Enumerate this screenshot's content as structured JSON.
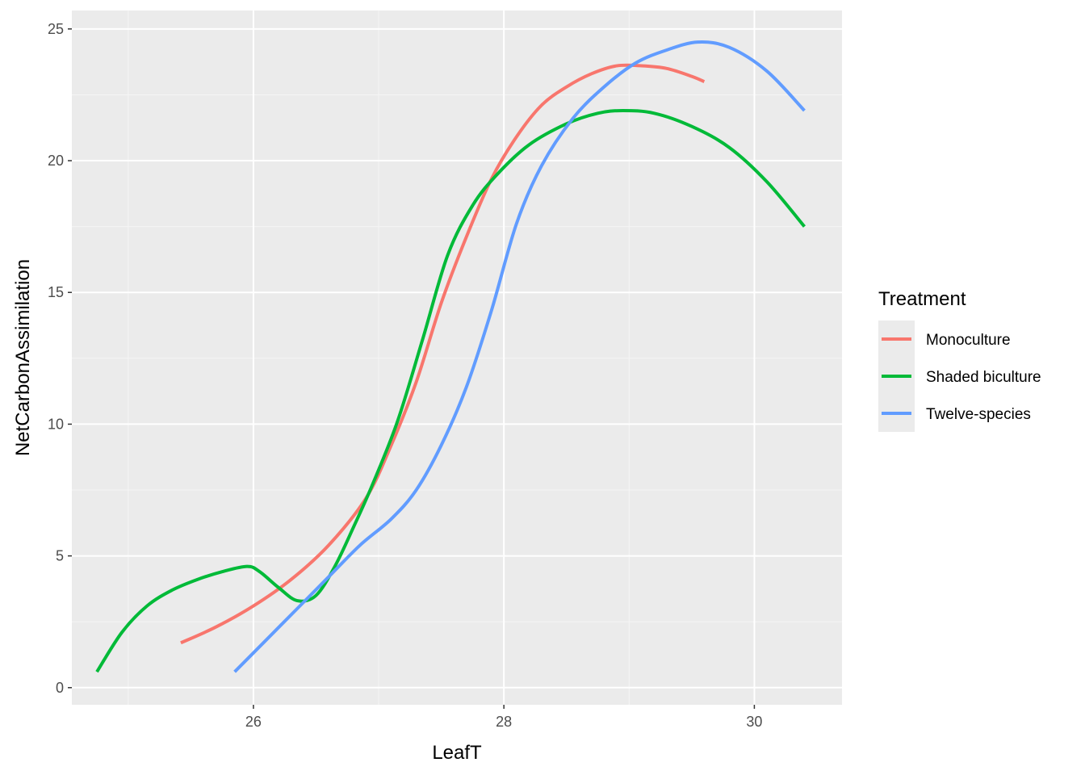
{
  "chart_data": {
    "type": "line",
    "xlabel": "LeafT",
    "ylabel": "NetCarbonAssimilation",
    "xlim": [
      24.55,
      30.7
    ],
    "ylim": [
      -0.65,
      25.7
    ],
    "x_ticks": [
      26,
      28,
      30
    ],
    "y_ticks": [
      0,
      5,
      10,
      15,
      20,
      25
    ],
    "x_tick_labels": [
      "26",
      "28",
      "30"
    ],
    "y_tick_labels": [
      "0",
      "5",
      "10",
      "15",
      "20",
      "25"
    ],
    "grid": true,
    "legend": {
      "title": "Treatment",
      "position": "right"
    },
    "series": [
      {
        "name": "Monoculture",
        "color": "#F8766D",
        "x": [
          25.42,
          25.7,
          26.0,
          26.3,
          26.6,
          26.9,
          27.1,
          27.3,
          27.5,
          27.7,
          27.9,
          28.1,
          28.3,
          28.5,
          28.7,
          28.9,
          29.1,
          29.3,
          29.5,
          29.6
        ],
        "y": [
          1.7,
          2.3,
          3.1,
          4.1,
          5.4,
          7.2,
          9.2,
          11.6,
          14.6,
          17.1,
          19.3,
          20.9,
          22.1,
          22.8,
          23.3,
          23.6,
          23.6,
          23.5,
          23.2,
          23.0
        ]
      },
      {
        "name": "Shaded biculture",
        "color": "#00BA38",
        "x": [
          24.75,
          24.95,
          25.15,
          25.35,
          25.55,
          25.75,
          25.95,
          26.05,
          26.2,
          26.35,
          26.5,
          26.65,
          26.8,
          26.95,
          27.15,
          27.35,
          27.55,
          27.75,
          27.95,
          28.2,
          28.5,
          28.75,
          28.95,
          29.2,
          29.5,
          29.8,
          30.1,
          30.4
        ],
        "y": [
          0.6,
          2.1,
          3.1,
          3.7,
          4.1,
          4.4,
          4.6,
          4.4,
          3.8,
          3.3,
          3.5,
          4.6,
          6.1,
          7.7,
          10.1,
          13.2,
          16.4,
          18.3,
          19.5,
          20.6,
          21.4,
          21.8,
          21.9,
          21.8,
          21.3,
          20.5,
          19.2,
          17.5
        ]
      },
      {
        "name": "Twelve-species",
        "color": "#619CFF",
        "x": [
          25.85,
          26.1,
          26.35,
          26.6,
          26.85,
          27.1,
          27.3,
          27.5,
          27.7,
          27.9,
          28.1,
          28.3,
          28.55,
          28.8,
          29.05,
          29.3,
          29.55,
          29.8,
          30.1,
          30.4
        ],
        "y": [
          0.6,
          1.8,
          3.0,
          4.2,
          5.4,
          6.4,
          7.5,
          9.2,
          11.4,
          14.3,
          17.6,
          19.8,
          21.6,
          22.8,
          23.7,
          24.2,
          24.5,
          24.3,
          23.4,
          21.9
        ]
      }
    ]
  }
}
